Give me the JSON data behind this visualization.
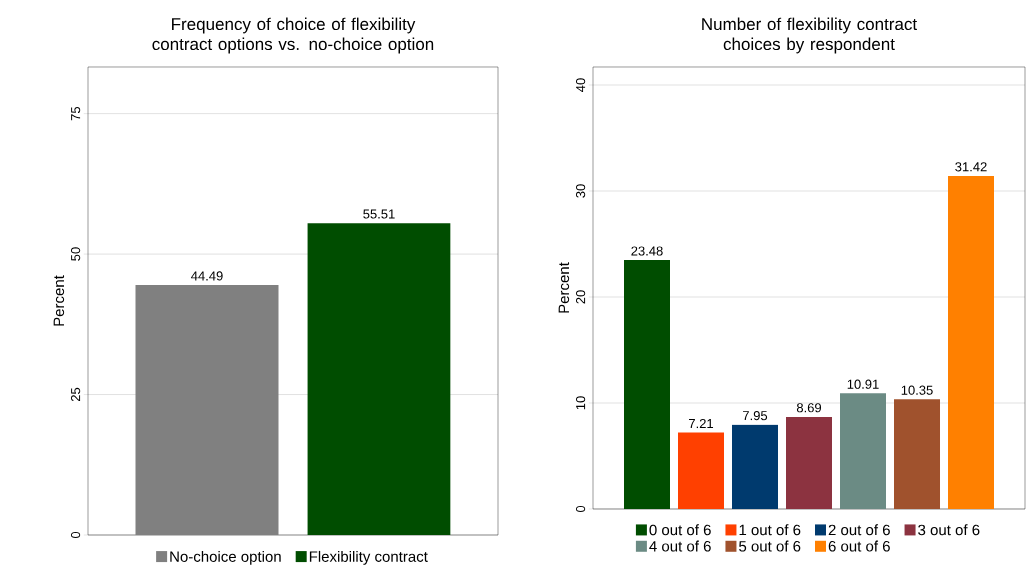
{
  "chart_data": [
    {
      "type": "bar",
      "title": "Frequency of choice of flexibility contract options vs. no-choice option",
      "ylabel": "Percent",
      "categories": [
        null
      ],
      "ylim": [
        0,
        83.3
      ],
      "yticks": [
        0,
        25,
        50,
        75
      ],
      "grid": "y",
      "legend": "bottom",
      "data_labels": true,
      "series": [
        {
          "name": "No-choice option",
          "color": "#808080",
          "values": [
            44.49
          ]
        },
        {
          "name": "Flexibility contract",
          "color": "#004d00",
          "values": [
            55.51
          ]
        }
      ]
    },
    {
      "type": "bar",
      "title": "Number of flexibility contract choices by respondent",
      "ylabel": "Percent",
      "categories": [
        null
      ],
      "ylim": [
        0,
        41.7
      ],
      "yticks": [
        0,
        10,
        20,
        30,
        40
      ],
      "grid": "y",
      "legend": "bottom",
      "data_labels": true,
      "series": [
        {
          "name": "0 out of 6",
          "color": "#004d00",
          "values": [
            23.48
          ]
        },
        {
          "name": "1 out of 6",
          "color": "#ff4000",
          "values": [
            7.21
          ]
        },
        {
          "name": "2 out of 6",
          "color": "#003a6e",
          "values": [
            7.95
          ]
        },
        {
          "name": "3 out of 6",
          "color": "#8c3340",
          "values": [
            8.69
          ]
        },
        {
          "name": "4 out of 6",
          "color": "#6b8b84",
          "values": [
            10.91
          ]
        },
        {
          "name": "5 out of 6",
          "color": "#a0522d",
          "values": [
            10.35
          ]
        },
        {
          "name": "6 out of 6",
          "color": "#ff8000",
          "values": [
            31.42
          ]
        }
      ]
    }
  ]
}
